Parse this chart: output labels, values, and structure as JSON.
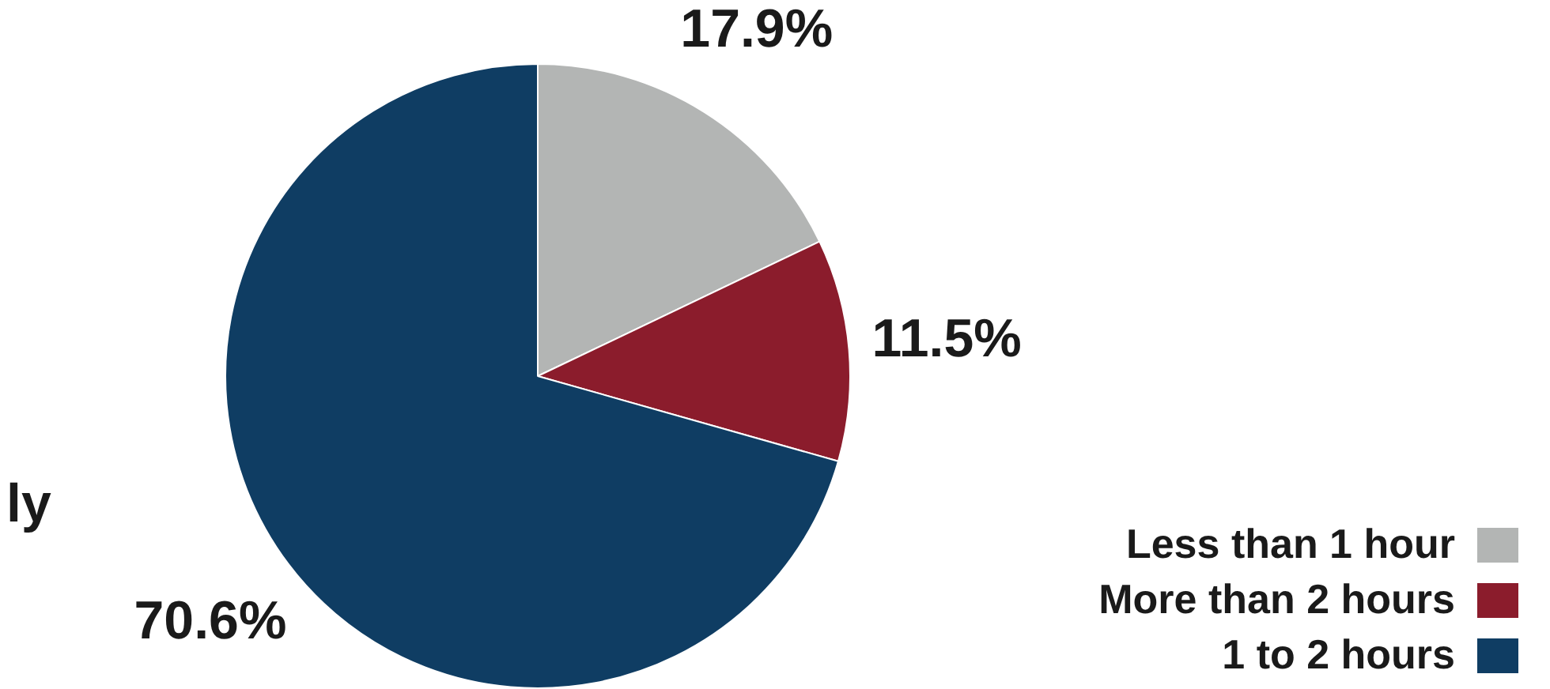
{
  "chart_data": {
    "type": "pie",
    "categories": [
      "Less than 1 hour",
      "More than 2 hours",
      "1 to 2 hours"
    ],
    "values": [
      17.9,
      11.5,
      70.6
    ],
    "colors": [
      "#b3b5b4",
      "#8b1c2c",
      "#0f3d63"
    ],
    "value_labels": [
      "17.9%",
      "11.5%",
      "70.6%"
    ],
    "legend": "bottom right",
    "annotations": [
      "ly"
    ]
  }
}
